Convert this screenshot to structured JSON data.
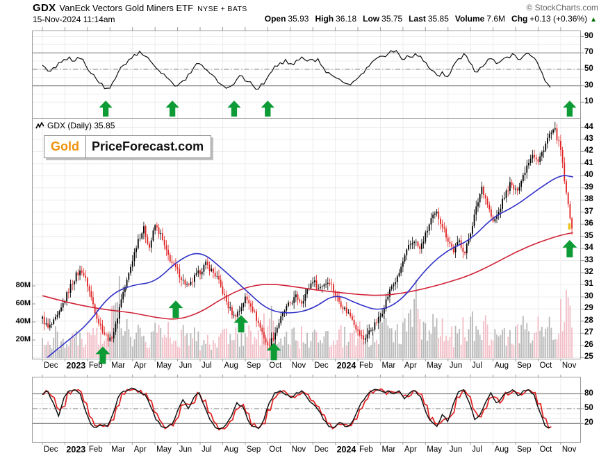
{
  "header": {
    "symbol": "GDX",
    "name": "VanEck Vectors Gold Miners ETF",
    "exchange": "NYSE + BATS",
    "datetime": "15-Nov-2024 11:14am",
    "copyright": "© StockCharts.com"
  },
  "quote": {
    "fields": [
      {
        "label": "Open",
        "value": "35.93"
      },
      {
        "label": "High",
        "value": "36.18"
      },
      {
        "label": "Low",
        "value": "35.75"
      },
      {
        "label": "Last",
        "value": "35.85"
      },
      {
        "label": "Volume",
        "value": "7.6M"
      },
      {
        "label": "Chg",
        "value": "+0.13 (+0.36%)"
      }
    ],
    "change_arrow": "▲"
  },
  "watermark": {
    "word1": "Gold",
    "word2": "PriceForecast.com"
  },
  "price_label": {
    "text": "GDX (Daily) 35.85"
  },
  "colors": {
    "up": "#000000",
    "down": "#e02020",
    "ma_fast": "#3030c8",
    "ma_slow": "#d02135",
    "vol_up": "#a8a8a8",
    "vol_down": "#f0b3bd",
    "arrow": "#0c9b35",
    "grid": "#ececec",
    "frame": "#999999",
    "band": "#8c8c8c",
    "chg_up": "#007000",
    "gold": "#f0920e",
    "last_tick": "#eec31e",
    "line": "#111111",
    "stoch_red": "#e02020"
  },
  "chart_data": {
    "type": "candlestick",
    "title": "GDX (Daily)",
    "last_price": 35.85,
    "x_axis": {
      "months": [
        "Dec",
        "2023",
        "Feb",
        "Mar",
        "Apr",
        "May",
        "Jun",
        "Jul",
        "Aug",
        "Sep",
        "Oct",
        "Nov",
        "Dec",
        "2024",
        "Feb",
        "Mar",
        "Apr",
        "May",
        "Jun",
        "Jul",
        "Aug",
        "Sep",
        "Oct",
        "Nov"
      ],
      "bold_labels": [
        "2023",
        "2024"
      ]
    },
    "panels": {
      "rsi": {
        "y_ticks": [
          90,
          70,
          50,
          30,
          10
        ],
        "hlines": [
          70,
          30
        ],
        "midline": 50,
        "ylim": [
          0,
          100
        ],
        "weekly": [
          55,
          48,
          52,
          58,
          62,
          65,
          60,
          63,
          55,
          45,
          38,
          33,
          27,
          34,
          46,
          55,
          62,
          68,
          72,
          66,
          60,
          52,
          45,
          40,
          34,
          30,
          36,
          44,
          52,
          57,
          51,
          45,
          40,
          32,
          27,
          30,
          38,
          42,
          35,
          30,
          26,
          32,
          44,
          54,
          58,
          62,
          57,
          61,
          65,
          60,
          62,
          63,
          52,
          46,
          41,
          38,
          33,
          31,
          37,
          44,
          52,
          59,
          64,
          66,
          69,
          71,
          68,
          62,
          65,
          69,
          66,
          58,
          49,
          43,
          47,
          41,
          54,
          63,
          69,
          59,
          47,
          52,
          57,
          63,
          57,
          61,
          65,
          69,
          62,
          66,
          69,
          64,
          52,
          36,
          28
        ]
      },
      "price": {
        "y_ticks": [
          44,
          43,
          42,
          41,
          40,
          39,
          38,
          37,
          36,
          35,
          34,
          33,
          32,
          31,
          30,
          29,
          28,
          27,
          26,
          25
        ],
        "ylim": [
          25,
          44
        ],
        "close_weekly": [
          28.2,
          27.4,
          27.9,
          28.6,
          29.8,
          30.9,
          31.8,
          32.2,
          31.0,
          29.4,
          27.9,
          27.0,
          26.4,
          27.6,
          29.9,
          31.3,
          33.1,
          34.8,
          35.6,
          34.1,
          35.9,
          35.1,
          33.7,
          32.8,
          32.1,
          31.3,
          30.8,
          31.6,
          32.1,
          32.7,
          32.2,
          31.6,
          30.4,
          29.2,
          28.4,
          28.9,
          29.9,
          29.4,
          28.2,
          27.1,
          25.9,
          26.7,
          27.9,
          28.9,
          29.5,
          30.0,
          29.6,
          30.5,
          31.4,
          30.7,
          31.1,
          31.3,
          30.2,
          29.4,
          28.8,
          28.3,
          27.1,
          26.5,
          27.1,
          27.7,
          28.4,
          29.7,
          30.9,
          31.5,
          32.9,
          34.1,
          34.7,
          33.9,
          35.1,
          36.4,
          36.9,
          35.9,
          34.7,
          33.8,
          34.6,
          33.6,
          35.4,
          37.3,
          39.1,
          37.7,
          36.1,
          37.0,
          38.3,
          39.3,
          38.7,
          39.6,
          40.9,
          41.9,
          41.1,
          42.3,
          43.4,
          43.7,
          42.1,
          38.4,
          35.85
        ],
        "ma_fast_monthly": [
          25.0,
          26.2,
          27.7,
          30.2,
          31.0,
          31.2,
          33.0,
          33.85,
          32.3,
          30.6,
          28.9,
          28.6,
          29.0,
          30.3,
          29.4,
          28.8,
          29.8,
          32.3,
          33.9,
          34.7,
          36.6,
          37.5,
          38.9,
          40.1,
          39.9
        ],
        "ma_slow_monthly": [
          30.1,
          29.6,
          29.2,
          28.9,
          28.7,
          28.3,
          28.1,
          28.7,
          29.9,
          30.8,
          31.1,
          30.9,
          30.6,
          30.4,
          30.2,
          30.1,
          30.3,
          30.7,
          31.2,
          31.8,
          32.7,
          33.7,
          34.5,
          35.1,
          35.3
        ],
        "volume_weekly_millions": [
          22,
          18,
          25,
          16,
          24,
          28,
          21,
          26,
          30,
          24,
          27,
          22,
          55,
          78,
          42,
          30,
          26,
          32,
          24,
          21,
          28,
          24,
          30,
          26,
          22,
          26,
          20,
          24,
          18,
          22,
          19,
          23,
          26,
          30,
          24,
          21,
          28,
          24,
          30,
          36,
          48,
          34,
          28,
          25,
          27,
          22,
          26,
          20,
          24,
          20,
          23,
          26,
          22,
          26,
          21,
          24,
          30,
          34,
          26,
          22,
          42,
          36,
          30,
          27,
          34,
          40,
          61,
          30,
          36,
          44,
          38,
          32,
          30,
          26,
          32,
          24,
          36,
          42,
          38,
          30,
          32,
          28,
          30,
          26,
          30,
          34,
          31,
          36,
          32,
          36,
          34,
          38,
          52,
          64,
          58
        ],
        "volume_ticks": [
          "80M",
          "60M",
          "40M",
          "20M"
        ]
      },
      "stochastic": {
        "y_ticks": [
          80,
          50,
          20
        ],
        "hlines": [
          80,
          20
        ],
        "midline": 50,
        "ylim": [
          0,
          100
        ],
        "weekly": [
          78,
          85,
          62,
          35,
          72,
          86,
          88,
          80,
          45,
          18,
          12,
          16,
          14,
          38,
          72,
          85,
          88,
          90,
          84,
          78,
          55,
          28,
          14,
          12,
          18,
          45,
          68,
          50,
          72,
          82,
          55,
          28,
          12,
          10,
          18,
          35,
          62,
          55,
          28,
          14,
          10,
          28,
          62,
          82,
          86,
          78,
          72,
          82,
          86,
          72,
          60,
          48,
          28,
          14,
          12,
          22,
          14,
          18,
          38,
          62,
          76,
          86,
          88,
          84,
          86,
          80,
          86,
          70,
          82,
          86,
          74,
          42,
          24,
          14,
          38,
          24,
          58,
          84,
          88,
          62,
          28,
          38,
          62,
          82,
          62,
          72,
          82,
          88,
          76,
          86,
          88,
          78,
          45,
          16,
          12
        ]
      }
    },
    "buy_signal_arrows": {
      "top_row_months": [
        2.81,
        5.77,
        8.51,
        10.0,
        23.4
      ],
      "price_panel": [
        {
          "month": 2.68,
          "tip_price": 25.9
        },
        {
          "month": 5.92,
          "tip_price": 29.7
        },
        {
          "month": 8.82,
          "tip_price": 28.5
        },
        {
          "month": 10.27,
          "tip_price": 26.2
        },
        {
          "month": 23.4,
          "tip_price": 34.7
        }
      ]
    }
  }
}
